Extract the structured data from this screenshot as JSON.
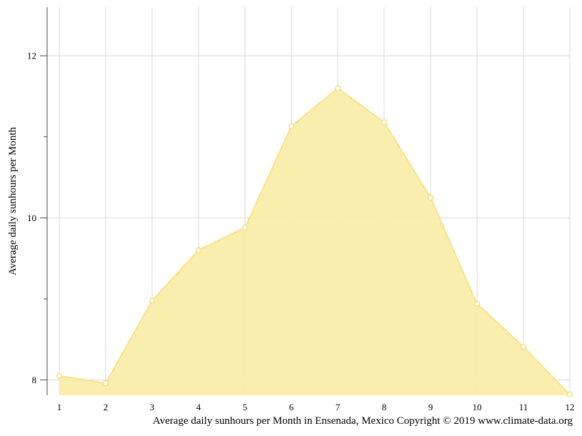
{
  "chart_data": {
    "type": "area",
    "title": "",
    "xlabel": "",
    "ylabel": "Average daily sunhours per Month",
    "caption": "Average daily sunhours per Month in Ensenada, Mexico Copyright © 2019 www.climate-data.org",
    "categories": [
      "1",
      "2",
      "3",
      "4",
      "5",
      "6",
      "7",
      "8",
      "9",
      "10",
      "11",
      "12"
    ],
    "series": [
      {
        "name": "",
        "values": [
          8.05,
          7.96,
          8.98,
          9.6,
          9.88,
          11.13,
          11.6,
          11.18,
          10.25,
          8.94,
          8.41,
          7.82
        ]
      }
    ],
    "ylim": [
      7.81,
      12.6
    ],
    "yticks_labeled": [
      8,
      10,
      12
    ],
    "yticks_minor": [
      9,
      11
    ],
    "grid": true,
    "legend": "none",
    "colors": {
      "fill": "#f9eda9",
      "line": "#f8e38f",
      "marker_fill": "#ffffff",
      "marker_stroke": "#f5db72",
      "grid": "#d9d9d9",
      "axis": "#444444"
    }
  }
}
